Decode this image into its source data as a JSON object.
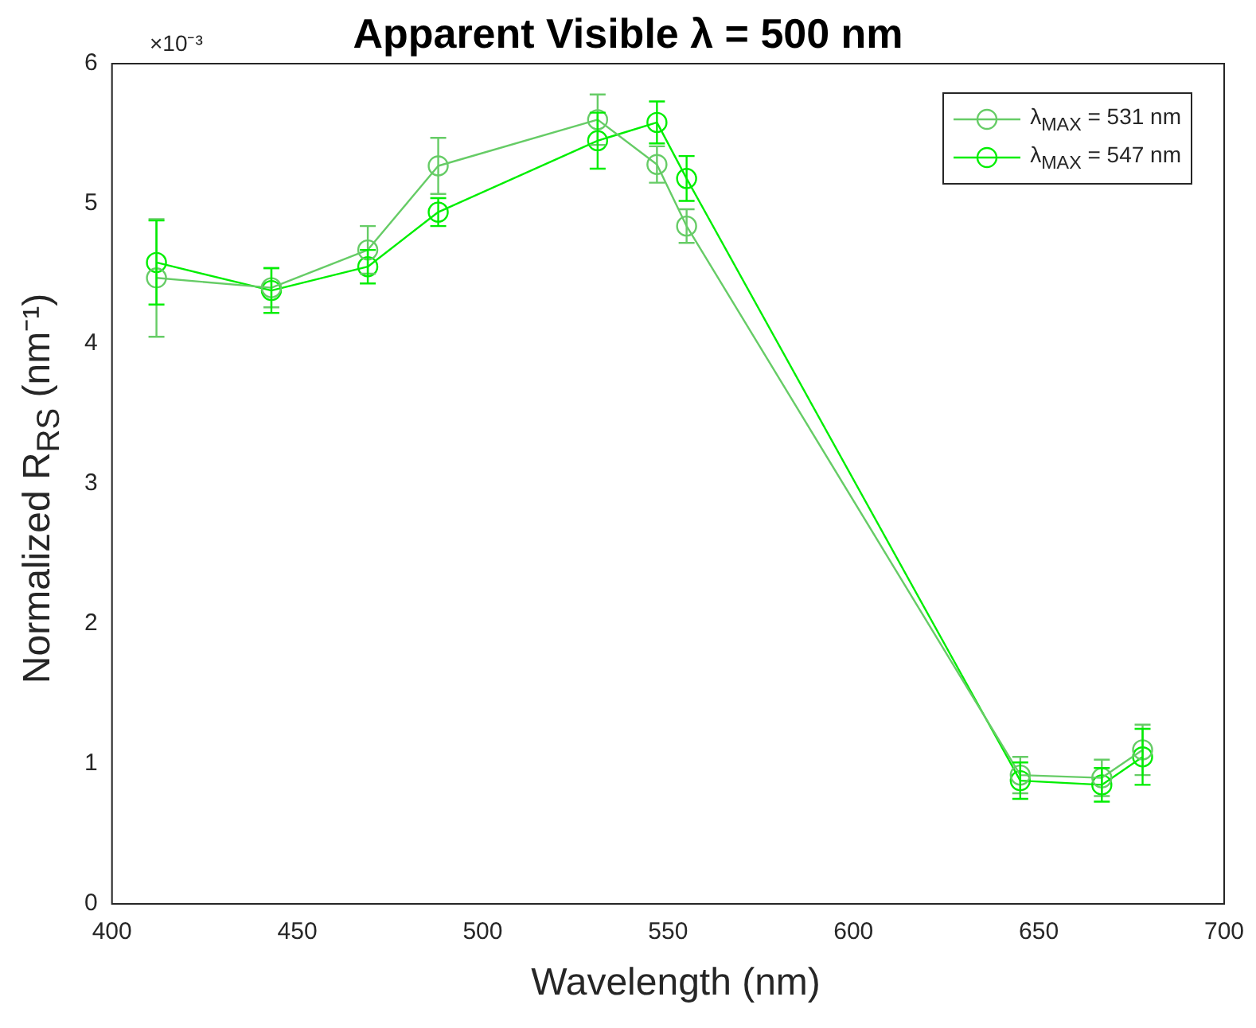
{
  "chart_data": {
    "type": "line",
    "title": "Apparent Visible λ = 500 nm",
    "xlabel": "Wavelength (nm)",
    "ylabel": "Normalized R$_{RS}$ (nm⁻¹)",
    "annotations": [
      "×10⁻³"
    ],
    "x": [
      412,
      443,
      469,
      488,
      531,
      547,
      555,
      645,
      667,
      678
    ],
    "series": [
      {
        "name": "λ$_{MAX}$ = 531 nm",
        "color": "#66cc66",
        "values": [
          4.47,
          4.4,
          4.67,
          5.27,
          5.6,
          5.28,
          4.84,
          0.92,
          0.9,
          1.1
        ],
        "errors": [
          0.42,
          0.14,
          0.17,
          0.2,
          0.18,
          0.13,
          0.12,
          0.13,
          0.13,
          0.18
        ]
      },
      {
        "name": "λ$_{MAX}$ = 547 nm",
        "color": "#00ee00",
        "values": [
          4.58,
          4.38,
          4.55,
          4.94,
          5.45,
          5.58,
          5.18,
          0.88,
          0.85,
          1.05
        ],
        "errors": [
          0.3,
          0.16,
          0.12,
          0.1,
          0.2,
          0.15,
          0.16,
          0.13,
          0.12,
          0.2
        ]
      }
    ],
    "xlim": [
      400,
      700
    ],
    "xticks": [
      400,
      450,
      500,
      550,
      600,
      650,
      700
    ],
    "ylim": [
      0,
      6
    ],
    "yticks": [
      0,
      1,
      2,
      3,
      4,
      5,
      6
    ],
    "grid": false,
    "legend": "top right",
    "marker": "circle",
    "line_style": "solid"
  }
}
